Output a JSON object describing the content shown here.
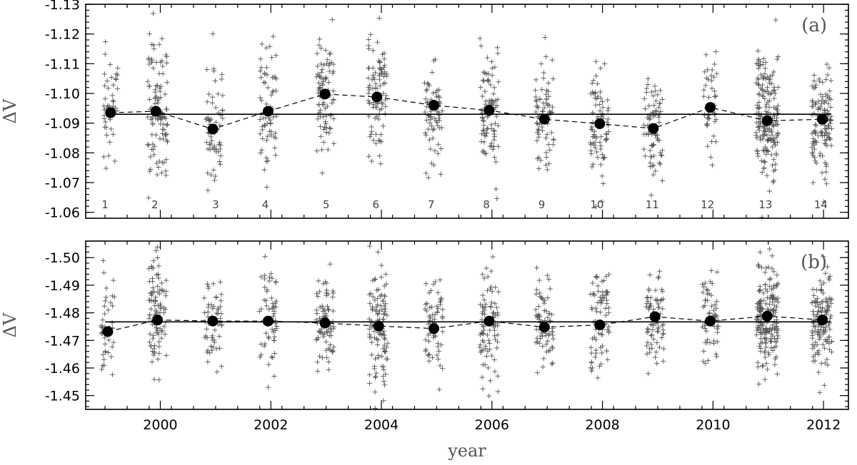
{
  "chart_data": [
    {
      "type": "scatter",
      "panel_label": "(a)",
      "xlabel": "",
      "ylabel": "ΔV",
      "xlim": [
        1998.65,
        2012.45
      ],
      "ylim": [
        -1.058,
        -1.13
      ],
      "y_inverted": true,
      "yticks": [
        "-1.13",
        "-1.12",
        "-1.11",
        "-1.10",
        "-1.09",
        "-1.08",
        "-1.07",
        "-1.06"
      ],
      "ytick_values": [
        -1.13,
        -1.12,
        -1.11,
        -1.1,
        -1.09,
        -1.08,
        -1.07,
        -1.06
      ],
      "xticks": [
        2000,
        2002,
        2004,
        2006,
        2008,
        2010,
        2012
      ],
      "show_xtick_labels": false,
      "mean_value": -1.093,
      "season_labels": [
        "1",
        "2",
        "3",
        "4",
        "5",
        "6",
        "7",
        "8",
        "9",
        "10",
        "11",
        "12",
        "13",
        "14"
      ],
      "season_label_x": [
        1999.0,
        1999.9,
        2001.0,
        2001.9,
        2003.0,
        2003.9,
        2004.9,
        2005.9,
        2006.9,
        2007.9,
        2008.9,
        2009.9,
        2010.95,
        2011.95
      ],
      "seasonal_means": {
        "x": [
          1999.1,
          1999.92,
          2000.95,
          2001.95,
          2002.98,
          2003.92,
          2004.95,
          2005.95,
          2006.95,
          2007.95,
          2008.92,
          2009.95,
          2010.98,
          2011.98
        ],
        "y": [
          -1.0935,
          -1.094,
          -1.088,
          -1.094,
          -1.0998,
          -1.0988,
          -1.096,
          -1.0943,
          -1.0913,
          -1.0898,
          -1.0882,
          -1.0953,
          -1.0908,
          -1.0913
        ]
      },
      "scatter_clusters": [
        {
          "x": 1999.1,
          "spread": 0.13,
          "mean": -1.0935,
          "sd": 0.0095,
          "n": 45
        },
        {
          "x": 1999.95,
          "spread": 0.18,
          "mean": -1.094,
          "sd": 0.012,
          "n": 110
        },
        {
          "x": 2000.98,
          "spread": 0.15,
          "mean": -1.088,
          "sd": 0.0095,
          "n": 70
        },
        {
          "x": 2001.95,
          "spread": 0.15,
          "mean": -1.094,
          "sd": 0.011,
          "n": 65
        },
        {
          "x": 2002.98,
          "spread": 0.16,
          "mean": -1.1,
          "sd": 0.009,
          "n": 90
        },
        {
          "x": 2003.93,
          "spread": 0.17,
          "mean": -1.099,
          "sd": 0.0095,
          "n": 95
        },
        {
          "x": 2004.95,
          "spread": 0.17,
          "mean": -1.096,
          "sd": 0.0095,
          "n": 70
        },
        {
          "x": 2005.95,
          "spread": 0.17,
          "mean": -1.0943,
          "sd": 0.011,
          "n": 90
        },
        {
          "x": 2006.95,
          "spread": 0.17,
          "mean": -1.0913,
          "sd": 0.0095,
          "n": 75
        },
        {
          "x": 2007.95,
          "spread": 0.17,
          "mean": -1.0898,
          "sd": 0.0095,
          "n": 80
        },
        {
          "x": 2008.92,
          "spread": 0.17,
          "mean": -1.0882,
          "sd": 0.0085,
          "n": 75
        },
        {
          "x": 2009.95,
          "spread": 0.12,
          "mean": -1.0953,
          "sd": 0.0085,
          "n": 45
        },
        {
          "x": 2010.98,
          "spread": 0.2,
          "mean": -1.0908,
          "sd": 0.011,
          "n": 190
        },
        {
          "x": 2011.97,
          "spread": 0.18,
          "mean": -1.0913,
          "sd": 0.0095,
          "n": 130
        }
      ]
    },
    {
      "type": "scatter",
      "panel_label": "(b)",
      "xlabel": "year",
      "ylabel": "ΔV",
      "xlim": [
        1998.65,
        2012.45
      ],
      "ylim": [
        -1.445,
        -1.506
      ],
      "y_inverted": true,
      "yticks": [
        "-1.50",
        "-1.49",
        "-1.48",
        "-1.47",
        "-1.46",
        "-1.45"
      ],
      "ytick_values": [
        -1.5,
        -1.49,
        -1.48,
        -1.47,
        -1.46,
        -1.45
      ],
      "xticks": [
        2000,
        2002,
        2004,
        2006,
        2008,
        2010,
        2012
      ],
      "xtick_labels": [
        "2000",
        "2002",
        "2004",
        "2006",
        "2008",
        "2010",
        "2012"
      ],
      "show_xtick_labels": true,
      "mean_value": -1.4767,
      "season_labels": [],
      "seasonal_means": {
        "x": [
          1999.05,
          1999.95,
          2000.95,
          2001.95,
          2002.98,
          2003.95,
          2004.95,
          2005.95,
          2006.95,
          2007.95,
          2008.95,
          2009.95,
          2010.98,
          2011.98
        ],
        "y": [
          -1.4732,
          -1.4774,
          -1.477,
          -1.477,
          -1.4763,
          -1.4752,
          -1.4743,
          -1.477,
          -1.4748,
          -1.4756,
          -1.4786,
          -1.477,
          -1.4788,
          -1.4774
        ]
      },
      "scatter_clusters": [
        {
          "x": 1999.05,
          "spread": 0.12,
          "mean": -1.4735,
          "sd": 0.0095,
          "n": 45
        },
        {
          "x": 1999.95,
          "spread": 0.16,
          "mean": -1.4775,
          "sd": 0.0095,
          "n": 100
        },
        {
          "x": 2000.95,
          "spread": 0.16,
          "mean": -1.477,
          "sd": 0.009,
          "n": 55
        },
        {
          "x": 2001.95,
          "spread": 0.16,
          "mean": -1.477,
          "sd": 0.01,
          "n": 60
        },
        {
          "x": 2002.98,
          "spread": 0.16,
          "mean": -1.4763,
          "sd": 0.0095,
          "n": 80
        },
        {
          "x": 2003.95,
          "spread": 0.17,
          "mean": -1.4752,
          "sd": 0.011,
          "n": 110
        },
        {
          "x": 2004.95,
          "spread": 0.16,
          "mean": -1.4745,
          "sd": 0.009,
          "n": 65
        },
        {
          "x": 2005.95,
          "spread": 0.17,
          "mean": -1.477,
          "sd": 0.0105,
          "n": 90
        },
        {
          "x": 2006.95,
          "spread": 0.16,
          "mean": -1.4748,
          "sd": 0.009,
          "n": 70
        },
        {
          "x": 2007.95,
          "spread": 0.17,
          "mean": -1.4756,
          "sd": 0.0095,
          "n": 80
        },
        {
          "x": 2008.95,
          "spread": 0.16,
          "mean": -1.4786,
          "sd": 0.0085,
          "n": 75
        },
        {
          "x": 2009.95,
          "spread": 0.15,
          "mean": -1.477,
          "sd": 0.009,
          "n": 60
        },
        {
          "x": 2010.98,
          "spread": 0.2,
          "mean": -1.4788,
          "sd": 0.0095,
          "n": 190
        },
        {
          "x": 2011.97,
          "spread": 0.18,
          "mean": -1.4774,
          "sd": 0.009,
          "n": 130
        }
      ]
    }
  ]
}
